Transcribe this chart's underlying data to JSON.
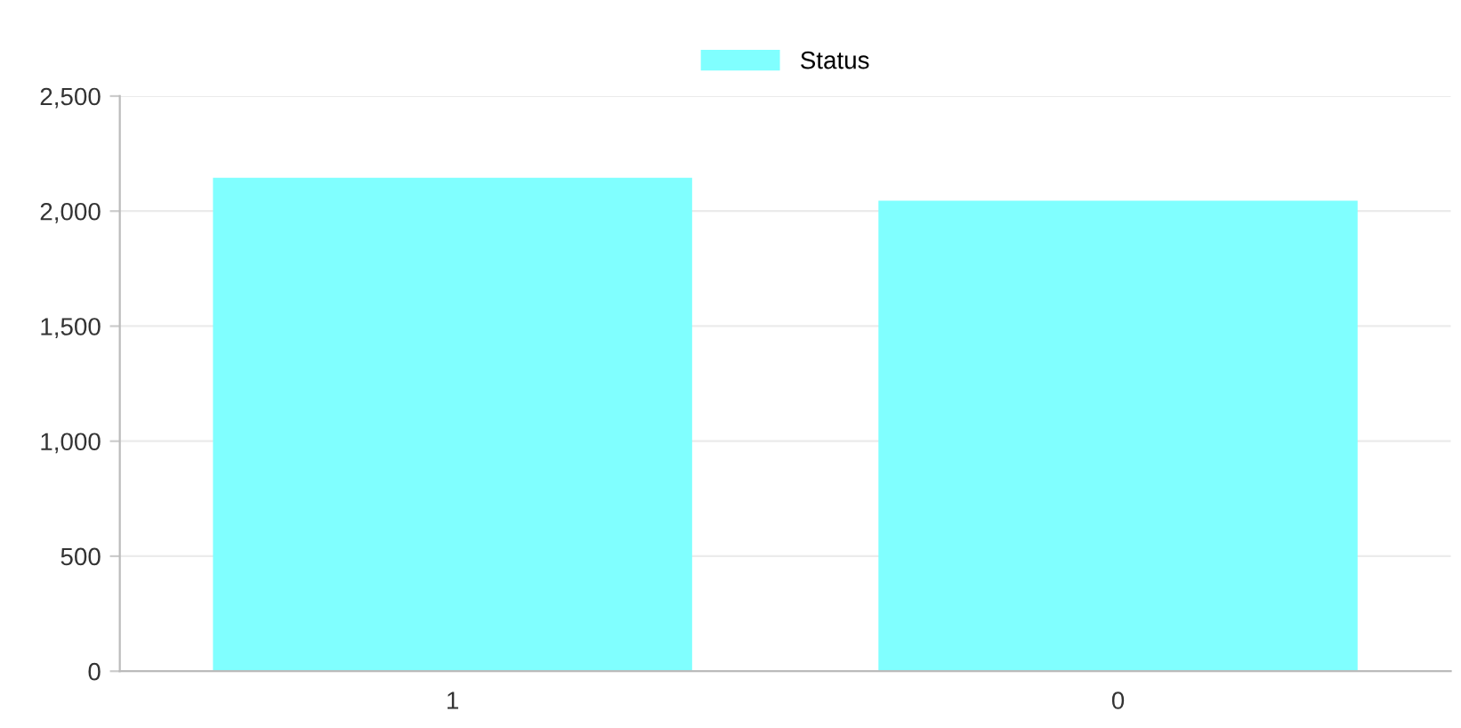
{
  "chart_data": {
    "type": "bar",
    "categories": [
      "1",
      "0"
    ],
    "series": [
      {
        "name": "Status",
        "color": "#80ffff",
        "values": [
          2145,
          2045
        ]
      }
    ],
    "ylim": [
      0,
      2500
    ],
    "yticks": [
      0,
      {
        "value": 500,
        "label": "500"
      },
      {
        "value": 1000,
        "label": "1,000"
      },
      {
        "value": 1500,
        "label": "1,500"
      },
      {
        "value": 2000,
        "label": "2,000"
      },
      {
        "value": 2500,
        "label": "2,500"
      }
    ],
    "grid": "y",
    "legend": "top"
  }
}
